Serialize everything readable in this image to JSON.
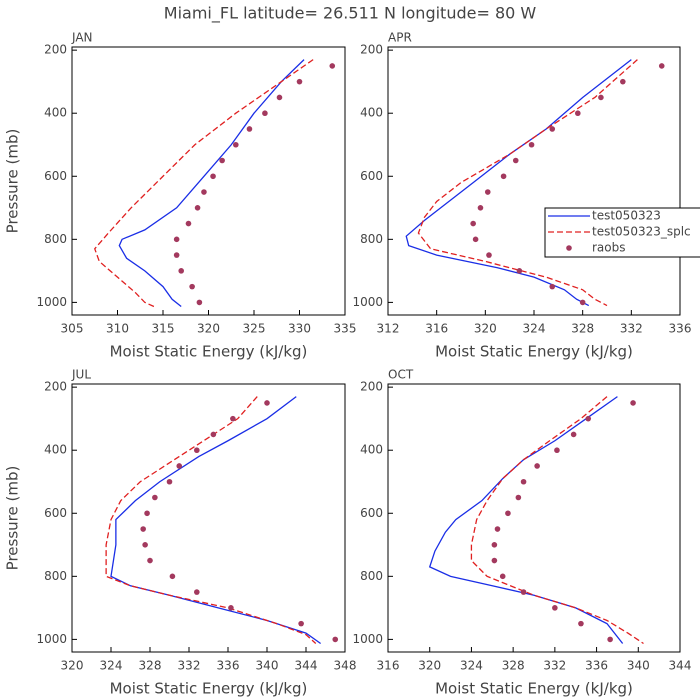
{
  "title": "Miami_FL  latitude= 26.511 N longitude= 80 W",
  "chart_data": [
    {
      "type": "line",
      "title": "JAN",
      "xlabel": "Moist Static Energy (kJ/kg)",
      "ylabel": "Pressure (mb)",
      "xlim": [
        305,
        335
      ],
      "xticks": [
        305,
        310,
        315,
        320,
        325,
        330,
        335
      ],
      "ylim": [
        1040,
        190
      ],
      "yticks": [
        200,
        400,
        600,
        800,
        1000
      ],
      "series": [
        {
          "color": "#1a2ee6",
          "style": "solid",
          "x": [
            330.5,
            328,
            325,
            322.5,
            319.5,
            316.5,
            313,
            310.5,
            310.2,
            311,
            313,
            315,
            316,
            317
          ],
          "y": [
            230,
            300,
            400,
            500,
            600,
            700,
            770,
            800,
            820,
            860,
            900,
            950,
            990,
            1013
          ]
        },
        {
          "color": "#e02020",
          "style": "dashed",
          "x": [
            331.5,
            328,
            323,
            318.5,
            315,
            311.5,
            309,
            307.5,
            308,
            310,
            312,
            313,
            314
          ],
          "y": [
            230,
            300,
            400,
            500,
            600,
            700,
            780,
            830,
            870,
            920,
            970,
            1000,
            1013
          ]
        },
        {
          "color": "#a3395e",
          "style": "dots",
          "x": [
            333.6,
            330,
            327.8,
            326.2,
            324.5,
            323,
            321.5,
            320.5,
            319.5,
            318.8,
            317.8,
            316.5,
            316.5,
            317,
            318.2,
            319
          ],
          "y": [
            250,
            300,
            350,
            400,
            450,
            500,
            550,
            600,
            650,
            700,
            750,
            800,
            850,
            900,
            950,
            1000
          ]
        }
      ]
    },
    {
      "type": "line",
      "title": "APR",
      "xlabel": "Moist Static Energy (kJ/kg)",
      "xlim": [
        312,
        336
      ],
      "xticks": [
        312,
        316,
        320,
        324,
        328,
        332,
        336
      ],
      "ylim": [
        1040,
        190
      ],
      "yticks": [
        200,
        400,
        600,
        800,
        1000
      ],
      "legend": "right",
      "series": [
        {
          "name": "test050323",
          "color": "#1a2ee6",
          "style": "solid",
          "x": [
            332,
            328,
            325,
            322,
            319,
            317,
            315,
            313.5,
            313.7,
            316,
            321,
            324,
            326.5,
            327.5,
            328.5
          ],
          "y": [
            230,
            350,
            450,
            530,
            620,
            680,
            740,
            790,
            820,
            850,
            890,
            920,
            960,
            990,
            1010
          ]
        },
        {
          "name": "test050323_splc",
          "color": "#e02020",
          "style": "dashed",
          "x": [
            332.5,
            329,
            325,
            322,
            318,
            316,
            315,
            314.5,
            315.5,
            320,
            325,
            328,
            329,
            330
          ],
          "y": [
            230,
            350,
            450,
            530,
            620,
            680,
            730,
            780,
            830,
            870,
            920,
            960,
            990,
            1010
          ]
        },
        {
          "name": "raobs",
          "color": "#a3395e",
          "style": "dots",
          "x": [
            334.5,
            331.3,
            329.5,
            327.6,
            325.5,
            323.8,
            322.5,
            321.5,
            320.2,
            319.6,
            319,
            319.2,
            320.3,
            322.8,
            325.5,
            328
          ],
          "y": [
            250,
            300,
            350,
            400,
            450,
            500,
            550,
            600,
            650,
            700,
            750,
            800,
            850,
            900,
            950,
            1000
          ]
        }
      ]
    },
    {
      "type": "line",
      "title": "JUL",
      "xlabel": "Moist Static Energy (kJ/kg)",
      "ylabel": "Pressure (mb)",
      "xlim": [
        320,
        348
      ],
      "xticks": [
        320,
        324,
        328,
        332,
        336,
        340,
        344,
        348
      ],
      "ylim": [
        1040,
        190
      ],
      "yticks": [
        200,
        400,
        600,
        800,
        1000
      ],
      "series": [
        {
          "color": "#1a2ee6",
          "style": "solid",
          "x": [
            343,
            340,
            336,
            333,
            329,
            326.5,
            324.5,
            324.5,
            324,
            326,
            330,
            335,
            340,
            344,
            345.5
          ],
          "y": [
            230,
            300,
            370,
            420,
            500,
            560,
            620,
            700,
            800,
            830,
            860,
            900,
            940,
            980,
            1013
          ]
        },
        {
          "color": "#e02020",
          "style": "dashed",
          "x": [
            339,
            337,
            333.5,
            330,
            327,
            325,
            324,
            323.5,
            323.5,
            326,
            330,
            336,
            341,
            344,
            345
          ],
          "y": [
            230,
            300,
            370,
            440,
            500,
            560,
            620,
            700,
            800,
            830,
            860,
            900,
            950,
            985,
            1013
          ]
        },
        {
          "color": "#a3395e",
          "style": "dots",
          "x": [
            340,
            336.5,
            334.5,
            332.8,
            331,
            330,
            328.5,
            327.7,
            327.3,
            327.5,
            328,
            330.3,
            332.8,
            336.3,
            343.5,
            347
          ],
          "y": [
            250,
            300,
            350,
            400,
            450,
            500,
            550,
            600,
            650,
            700,
            750,
            800,
            850,
            900,
            950,
            1000
          ]
        }
      ]
    },
    {
      "type": "line",
      "title": "OCT",
      "xlabel": "Moist Static Energy (kJ/kg)",
      "xlim": [
        316,
        344
      ],
      "xticks": [
        316,
        320,
        324,
        328,
        332,
        336,
        340,
        344
      ],
      "ylim": [
        1040,
        190
      ],
      "yticks": [
        200,
        400,
        600,
        800,
        1000
      ],
      "series": [
        {
          "color": "#1a2ee6",
          "style": "solid",
          "x": [
            338,
            335,
            332,
            329,
            327,
            325,
            322.5,
            321.5,
            320.5,
            320,
            322,
            326,
            330,
            334,
            337,
            338.5
          ],
          "y": [
            230,
            300,
            370,
            430,
            490,
            560,
            620,
            660,
            720,
            770,
            800,
            830,
            860,
            900,
            950,
            1013
          ]
        },
        {
          "color": "#e02020",
          "style": "dashed",
          "x": [
            337,
            334.5,
            331.5,
            329,
            327,
            325.5,
            324.5,
            324,
            324,
            325.5,
            330,
            334,
            337,
            339,
            340.5
          ],
          "y": [
            230,
            300,
            370,
            430,
            490,
            560,
            620,
            700,
            750,
            800,
            860,
            900,
            940,
            980,
            1013
          ]
        },
        {
          "color": "#a3395e",
          "style": "dots",
          "x": [
            339.5,
            335.2,
            333.8,
            332.2,
            330.3,
            329,
            328.5,
            327.5,
            326.5,
            326.2,
            326.2,
            327,
            329,
            332,
            334.5,
            337.3
          ],
          "y": [
            250,
            300,
            350,
            400,
            450,
            500,
            550,
            600,
            650,
            700,
            750,
            800,
            850,
            900,
            950,
            1000
          ]
        }
      ]
    }
  ]
}
